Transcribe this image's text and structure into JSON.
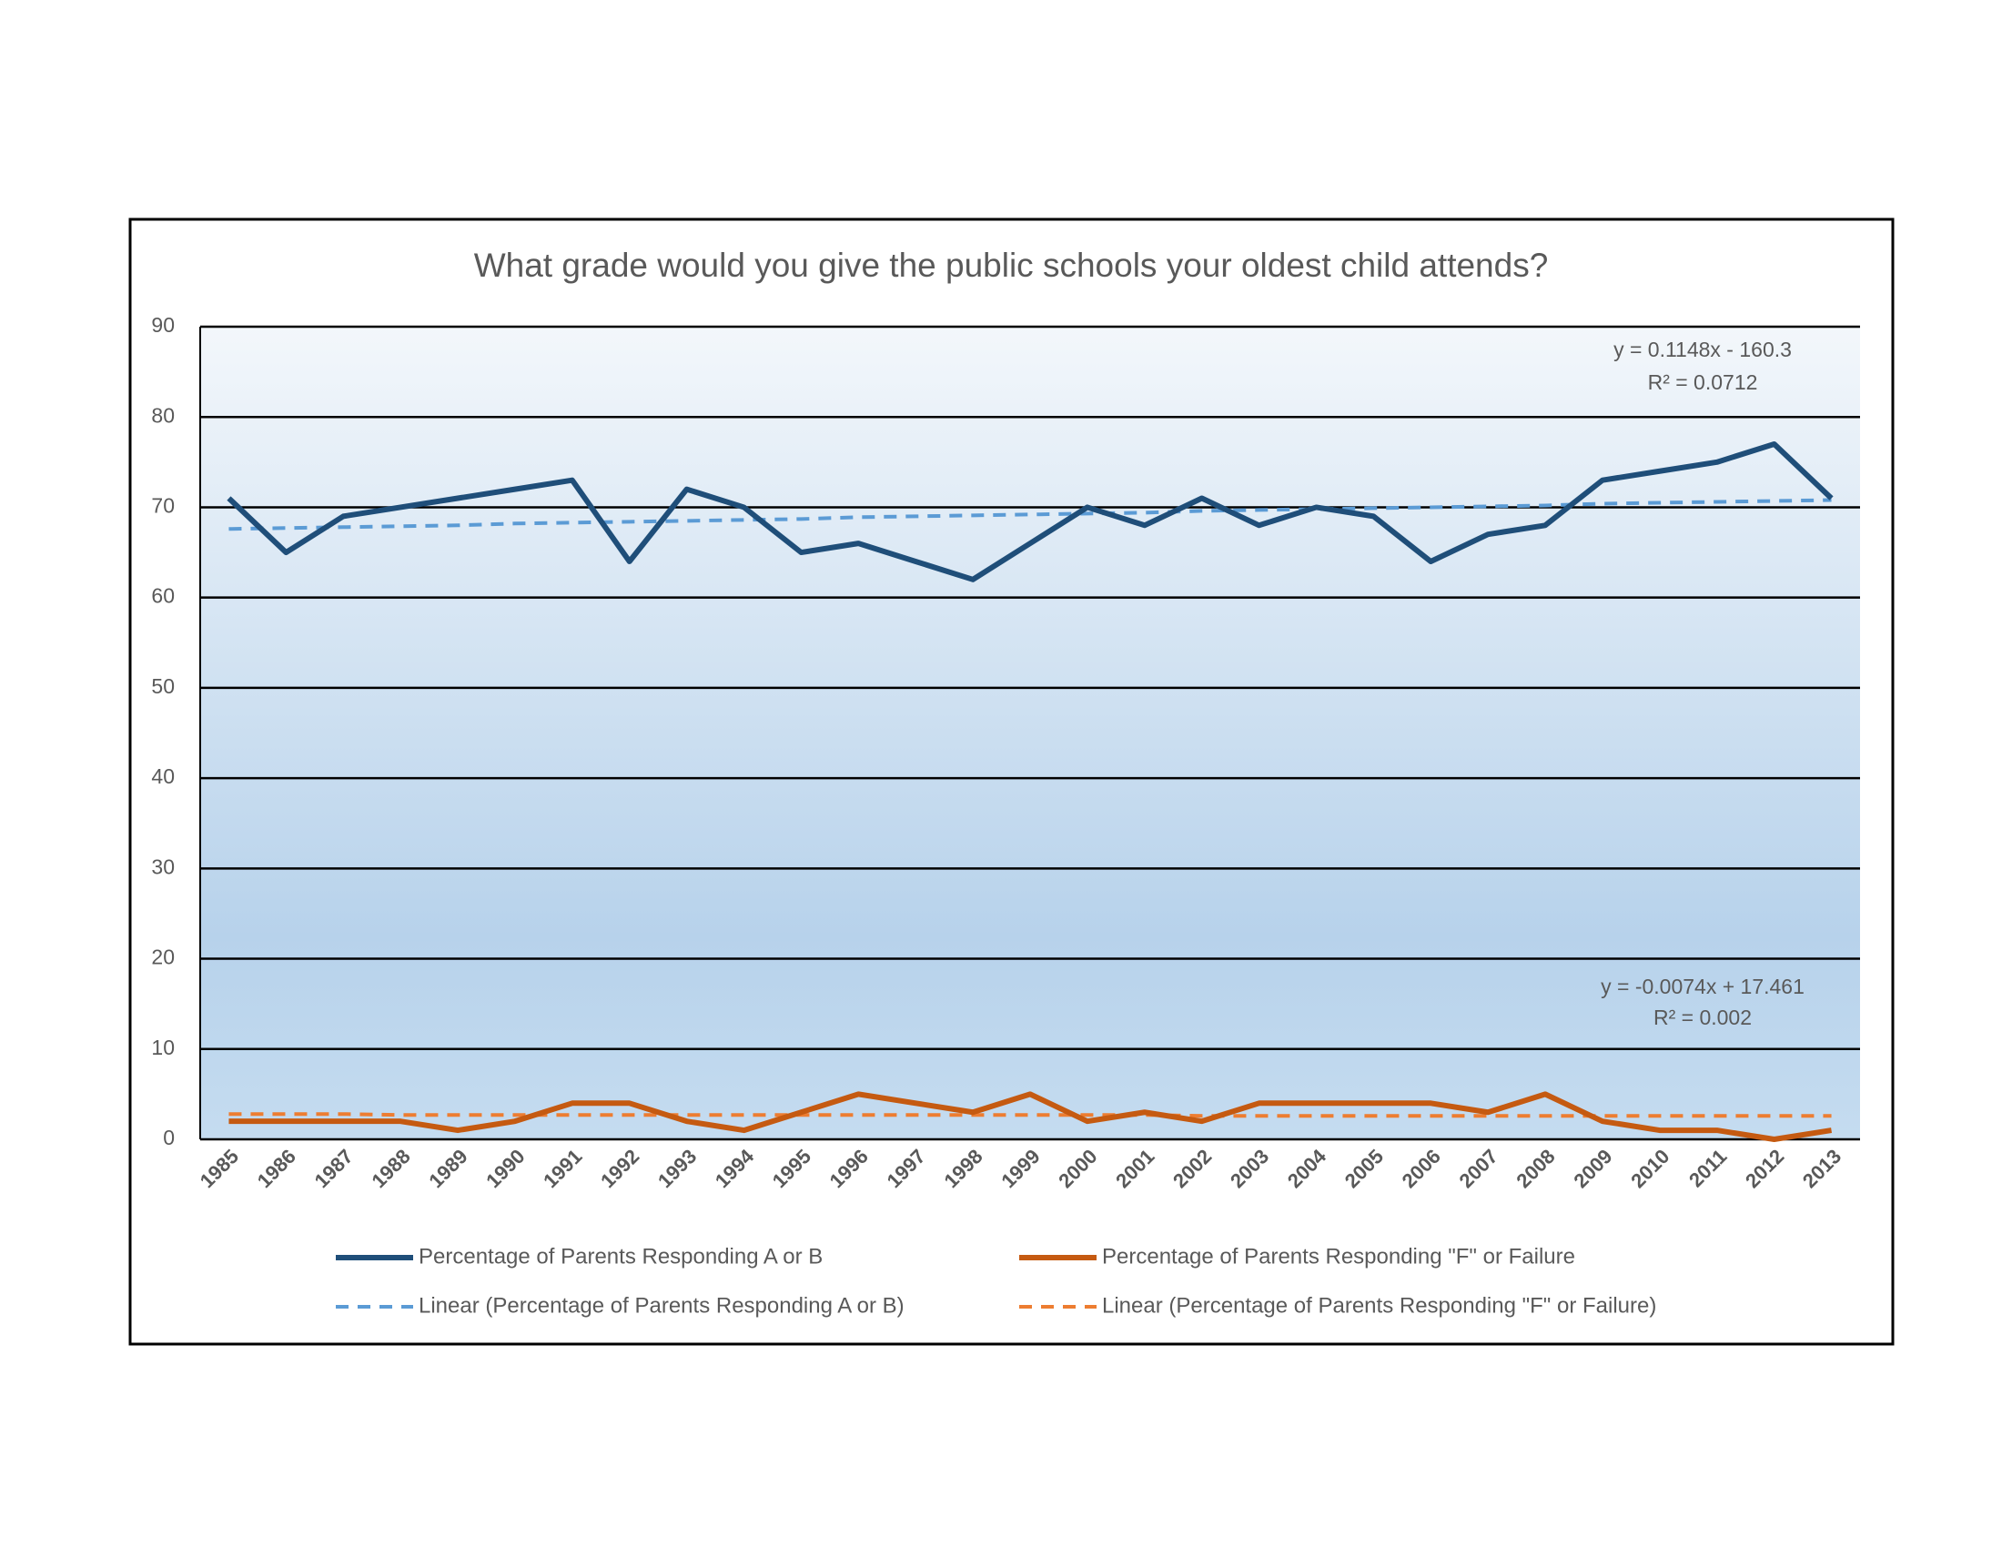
{
  "chart_data": {
    "type": "line",
    "title": "What grade would you give the public schools your oldest child attends?",
    "categories": [
      "1985",
      "1986",
      "1987",
      "1988",
      "1989",
      "1990",
      "1991",
      "1992",
      "1993",
      "1994",
      "1995",
      "1996",
      "1997",
      "1998",
      "1999",
      "2000",
      "2001",
      "2002",
      "2003",
      "2004",
      "2005",
      "2006",
      "2007",
      "2008",
      "2009",
      "2010",
      "2011",
      "2012",
      "2013"
    ],
    "series": [
      {
        "name": "Percentage of Parents Responding A or B",
        "color": "#1f4e79",
        "dashed": false,
        "values": [
          71,
          65,
          69,
          70,
          71,
          72,
          73,
          64,
          72,
          70,
          65,
          66,
          64,
          62,
          66,
          70,
          68,
          71,
          68,
          70,
          69,
          64,
          67,
          68,
          73,
          74,
          75,
          77,
          71
        ]
      },
      {
        "name": "Percentage of Parents Responding \"F\" or Failure",
        "color": "#c55a11",
        "dashed": false,
        "values": [
          2,
          2,
          2,
          2,
          1,
          2,
          4,
          4,
          2,
          1,
          3,
          5,
          4,
          3,
          5,
          2,
          3,
          2,
          4,
          4,
          4,
          4,
          3,
          5,
          2,
          1,
          1,
          0,
          1
        ]
      },
      {
        "name": "Linear (Percentage of Parents Responding A or B)",
        "color": "#5b9bd5",
        "dashed": true,
        "values": [
          67.6,
          67.7,
          67.8,
          67.9,
          68.0,
          68.2,
          68.3,
          68.4,
          68.5,
          68.6,
          68.7,
          68.9,
          69.0,
          69.1,
          69.2,
          69.3,
          69.4,
          69.6,
          69.7,
          69.8,
          69.9,
          70.0,
          70.1,
          70.2,
          70.4,
          70.5,
          70.6,
          70.7,
          70.8
        ]
      },
      {
        "name": "Linear (Percentage of Parents Responding \"F\" or Failure)",
        "color": "#ed7d31",
        "dashed": true,
        "values": [
          2.8,
          2.8,
          2.8,
          2.7,
          2.7,
          2.7,
          2.7,
          2.7,
          2.7,
          2.7,
          2.7,
          2.7,
          2.7,
          2.7,
          2.7,
          2.7,
          2.7,
          2.6,
          2.6,
          2.6,
          2.6,
          2.6,
          2.6,
          2.6,
          2.6,
          2.6,
          2.6,
          2.6,
          2.6
        ]
      }
    ],
    "annotations": [
      "y = 0.1148x - 160.3",
      "R² = 0.0712",
      "y = -0.0074x + 17.461",
      "R² = 0.002"
    ],
    "ylim": [
      0,
      90
    ],
    "yticks": [
      0,
      10,
      20,
      30,
      40,
      50,
      60,
      70,
      80,
      90
    ],
    "grid": true
  }
}
